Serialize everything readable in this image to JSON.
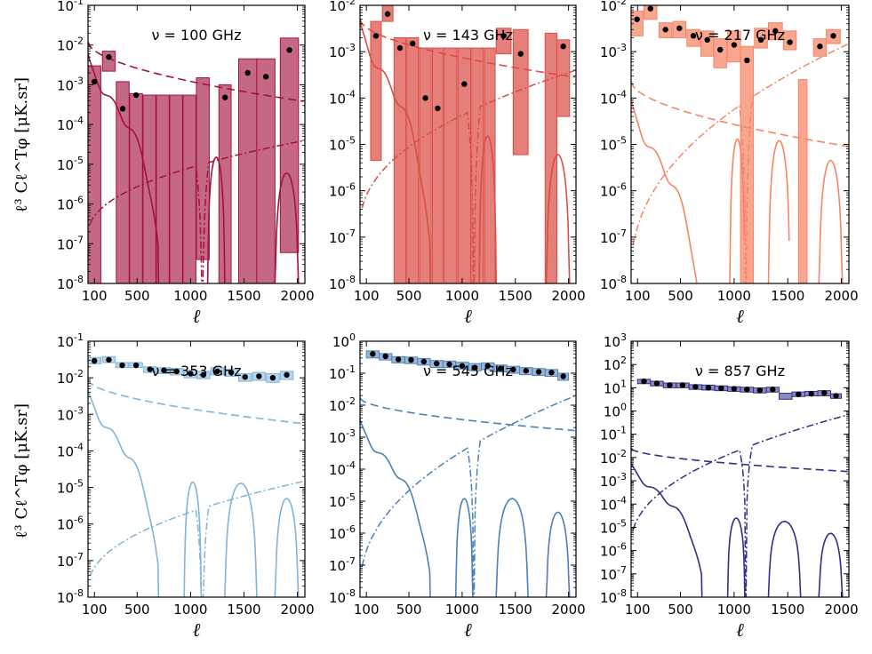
{
  "figure": {
    "xlabel": "ℓ",
    "ylabel": "ℓ³ Cℓ^Tφ  [μK.sr]"
  },
  "x_ticks": [
    "100",
    "500",
    "1000",
    "1500",
    "2000"
  ],
  "chart_data": [
    {
      "type": "bar",
      "title": "ν = 100 GHz",
      "color": "#a3123f",
      "xlim": [
        40,
        2070
      ],
      "ylim_exp": [
        -8,
        -1
      ],
      "y_ticks": [
        "10-8",
        "10-7",
        "10-6",
        "10-5",
        "10-4",
        "10-3",
        "10-2",
        "10-1"
      ],
      "bins": [
        {
          "lo": 40,
          "hi": 160,
          "low": 1e-08,
          "high": 0.003,
          "point": 0.0012
        },
        {
          "lo": 175,
          "hi": 295,
          "low": 0.0022,
          "high": 0.007,
          "point": 0.005
        },
        {
          "lo": 305,
          "hi": 425,
          "low": 1e-08,
          "high": 0.0012,
          "point": 0.00025
        },
        {
          "lo": 430,
          "hi": 550,
          "low": 1e-08,
          "high": 0.0006,
          "point": 0.00055
        },
        {
          "lo": 555,
          "hi": 675,
          "low": 1e-08,
          "high": 0.00055,
          "point": null
        },
        {
          "lo": 680,
          "hi": 800,
          "low": 1e-08,
          "high": 0.00055,
          "point": null
        },
        {
          "lo": 805,
          "hi": 925,
          "low": 1e-08,
          "high": 0.00055,
          "point": null
        },
        {
          "lo": 930,
          "hi": 1050,
          "low": 1e-08,
          "high": 0.00055,
          "point": null
        },
        {
          "lo": 1055,
          "hi": 1175,
          "low": 4e-08,
          "high": 0.0015,
          "point": null
        },
        {
          "lo": 1265,
          "hi": 1380,
          "low": 1e-08,
          "high": 0.001,
          "point": 0.00048
        },
        {
          "lo": 1450,
          "hi": 1620,
          "low": 1e-08,
          "high": 0.0045,
          "point": 0.002
        },
        {
          "lo": 1620,
          "hi": 1790,
          "low": 1e-08,
          "high": 0.0045,
          "point": 0.0016
        },
        {
          "lo": 1840,
          "hi": 2010,
          "low": 6e-08,
          "high": 0.015,
          "point": 0.0075
        }
      ],
      "dashed": {
        "a": 0.012,
        "b": 0.00038
      },
      "solid": {
        "peak": 0.005,
        "dropEnd": 700,
        "holes": [
          [
            1160,
            1320,
            1.5e-05
          ],
          [
            1790,
            2010,
            6e-06
          ]
        ]
      },
      "dashdot": {
        "lo": 1.6e-07,
        "hi": 4e-05,
        "cross": 1110
      }
    },
    {
      "type": "bar",
      "title": "ν = 143 GHz",
      "color": "#db4d45",
      "xlim": [
        40,
        2070
      ],
      "ylim_exp": [
        -8,
        -2
      ],
      "y_ticks": [
        "10-8",
        "10-7",
        "10-6",
        "10-5",
        "10-4",
        "10-3",
        "10-2"
      ],
      "bins": [
        {
          "lo": 140,
          "hi": 240,
          "low": 4.5e-06,
          "high": 0.0045,
          "point": 0.0022
        },
        {
          "lo": 250,
          "hi": 350,
          "low": 0.0045,
          "high": 0.01,
          "point": 0.0065
        },
        {
          "lo": 360,
          "hi": 470,
          "low": 1e-08,
          "high": 0.002,
          "point": 0.0012
        },
        {
          "lo": 480,
          "hi": 590,
          "low": 1e-08,
          "high": 0.002,
          "point": 0.0015
        },
        {
          "lo": 600,
          "hi": 710,
          "low": 1e-08,
          "high": 0.0012,
          "point": 0.0001
        },
        {
          "lo": 720,
          "hi": 820,
          "low": 1e-08,
          "high": 0.0012,
          "point": 6e-05
        },
        {
          "lo": 830,
          "hi": 950,
          "low": 1e-08,
          "high": 0.0012,
          "point": null
        },
        {
          "lo": 960,
          "hi": 1080,
          "low": 1e-08,
          "high": 0.0012,
          "point": 0.0002
        },
        {
          "lo": 1090,
          "hi": 1200,
          "low": 1e-08,
          "high": 0.0012,
          "point": null
        },
        {
          "lo": 1210,
          "hi": 1310,
          "low": 1e-08,
          "high": 0.0012,
          "point": null
        },
        {
          "lo": 1320,
          "hi": 1460,
          "low": 0.0009,
          "high": 0.0032,
          "point": 0.0022
        },
        {
          "lo": 1480,
          "hi": 1620,
          "low": 6e-06,
          "high": 0.003,
          "point": 0.0009
        },
        {
          "lo": 1780,
          "hi": 1890,
          "low": 1e-08,
          "high": 0.0025,
          "point": null
        },
        {
          "lo": 1890,
          "hi": 2010,
          "low": 4e-05,
          "high": 0.0018,
          "point": 0.0013
        }
      ],
      "dashed": {
        "a": 0.005,
        "b": 0.00028
      },
      "solid": {
        "peak": 0.004,
        "dropEnd": 700,
        "holes": [
          [
            1160,
            1320,
            1.5e-05
          ],
          [
            1790,
            2010,
            6e-06
          ]
        ]
      },
      "dashdot": {
        "lo": 1.6e-07,
        "hi": 0.0004,
        "cross": 1110
      }
    },
    {
      "type": "bar",
      "title": "ν = 217 GHz",
      "color": "#f58565",
      "xlim": [
        40,
        2070
      ],
      "ylim_exp": [
        -8,
        -2
      ],
      "y_ticks": [
        "10-8",
        "10-7",
        "10-6",
        "10-5",
        "10-4",
        "10-3",
        "10-2"
      ],
      "bins": [
        {
          "lo": 40,
          "hi": 150,
          "low": 0.0022,
          "high": 0.0075,
          "point": 0.005
        },
        {
          "lo": 160,
          "hi": 280,
          "low": 0.005,
          "high": 0.01,
          "point": 0.0085
        },
        {
          "lo": 300,
          "hi": 420,
          "low": 0.002,
          "high": 0.0042,
          "point": 0.003
        },
        {
          "lo": 430,
          "hi": 550,
          "low": 0.002,
          "high": 0.0045,
          "point": 0.0032
        },
        {
          "lo": 560,
          "hi": 680,
          "low": 0.0013,
          "high": 0.003,
          "point": 0.0022
        },
        {
          "lo": 690,
          "hi": 810,
          "low": 0.0008,
          "high": 0.0028,
          "point": 0.0018
        },
        {
          "lo": 810,
          "hi": 930,
          "low": 0.00045,
          "high": 0.0019,
          "point": 0.0011
        },
        {
          "lo": 940,
          "hi": 1060,
          "low": 0.0006,
          "high": 0.0028,
          "point": 0.0014
        },
        {
          "lo": 1060,
          "hi": 1180,
          "low": 1e-08,
          "high": 0.0013,
          "point": 0.00065
        },
        {
          "lo": 1190,
          "hi": 1310,
          "low": 0.0012,
          "high": 0.0032,
          "point": 0.0018
        },
        {
          "lo": 1320,
          "hi": 1450,
          "low": 0.0018,
          "high": 0.0042,
          "point": 0.0028
        },
        {
          "lo": 1460,
          "hi": 1580,
          "low": 0.0011,
          "high": 0.0028,
          "point": 0.0016
        },
        {
          "lo": 1600,
          "hi": 1680,
          "low": 1e-08,
          "high": 0.00025,
          "point": null
        },
        {
          "lo": 1740,
          "hi": 1860,
          "low": 0.0008,
          "high": 0.0019,
          "point": 0.0013
        },
        {
          "lo": 1860,
          "hi": 1990,
          "low": 0.0015,
          "high": 0.003,
          "point": 0.0022
        }
      ],
      "dashed": {
        "a": 0.00023,
        "b": 9e-06
      },
      "solid": {
        "peak": 8e-05,
        "dropEnd": 700,
        "holes": [
          [
            960,
            1100,
            1.3e-05
          ],
          [
            1320,
            1520,
            1.2e-05
          ],
          [
            1790,
            2010,
            4.5e-06
          ]
        ]
      },
      "dashdot": {
        "lo": 1.6e-08,
        "hi": 0.0015,
        "cross": 1110
      }
    },
    {
      "type": "bar",
      "title": "ν = 353 GHz",
      "color": "#7fb4db",
      "xlim": [
        40,
        2070
      ],
      "ylim_exp": [
        -8,
        -1
      ],
      "y_ticks": [
        "10-8",
        "10-7",
        "10-6",
        "10-5",
        "10-4",
        "10-3",
        "10-2",
        "10-1"
      ],
      "bins": [
        {
          "lo": 40,
          "hi": 160,
          "low": 0.024,
          "high": 0.036,
          "point": 0.029
        },
        {
          "lo": 175,
          "hi": 295,
          "low": 0.026,
          "high": 0.038,
          "point": 0.031
        },
        {
          "lo": 300,
          "hi": 420,
          "low": 0.019,
          "high": 0.026,
          "point": 0.022
        },
        {
          "lo": 430,
          "hi": 550,
          "low": 0.019,
          "high": 0.026,
          "point": 0.022
        },
        {
          "lo": 560,
          "hi": 680,
          "low": 0.014,
          "high": 0.02,
          "point": 0.017
        },
        {
          "lo": 690,
          "hi": 810,
          "low": 0.013,
          "high": 0.019,
          "point": 0.016
        },
        {
          "lo": 810,
          "hi": 930,
          "low": 0.012,
          "high": 0.018,
          "point": 0.015
        },
        {
          "lo": 940,
          "hi": 1060,
          "low": 0.01,
          "high": 0.016,
          "point": 0.013
        },
        {
          "lo": 1060,
          "hi": 1180,
          "low": 0.0095,
          "high": 0.015,
          "point": 0.012
        },
        {
          "lo": 1190,
          "hi": 1310,
          "low": 0.012,
          "high": 0.019,
          "point": 0.015
        },
        {
          "lo": 1320,
          "hi": 1440,
          "low": 0.011,
          "high": 0.017,
          "point": 0.014
        },
        {
          "lo": 1450,
          "hi": 1570,
          "low": 0.008,
          "high": 0.013,
          "point": 0.0105
        },
        {
          "lo": 1580,
          "hi": 1700,
          "low": 0.0085,
          "high": 0.014,
          "point": 0.011
        },
        {
          "lo": 1710,
          "hi": 1830,
          "low": 0.0075,
          "high": 0.013,
          "point": 0.01
        },
        {
          "lo": 1840,
          "hi": 1960,
          "low": 0.009,
          "high": 0.015,
          "point": 0.012
        }
      ],
      "dashed": {
        "a": 0.009,
        "b": 0.00055
      },
      "solid": {
        "peak": 0.004,
        "dropEnd": 700,
        "holes": [
          [
            940,
            1100,
            1.4e-05
          ],
          [
            1320,
            1620,
            1.3e-05
          ],
          [
            1790,
            2010,
            5e-06
          ]
        ]
      },
      "dashdot": {
        "lo": 1.6e-08,
        "hi": 1.5e-05,
        "cross": 1110
      }
    },
    {
      "type": "bar",
      "title": "ν = 545 GHz",
      "color": "#4a80b9",
      "xlim": [
        40,
        2070
      ],
      "ylim_exp": [
        -8,
        0
      ],
      "y_ticks": [
        "10-8",
        "10-7",
        "10-6",
        "10-5",
        "10-4",
        "10-3",
        "10-2",
        "10-1",
        "100"
      ],
      "bins": [
        {
          "lo": 100,
          "hi": 220,
          "low": 0.3,
          "high": 0.5,
          "point": 0.4
        },
        {
          "lo": 220,
          "hi": 340,
          "low": 0.26,
          "high": 0.41,
          "point": 0.34
        },
        {
          "lo": 340,
          "hi": 460,
          "low": 0.21,
          "high": 0.33,
          "point": 0.27
        },
        {
          "lo": 460,
          "hi": 580,
          "low": 0.2,
          "high": 0.32,
          "point": 0.26
        },
        {
          "lo": 580,
          "hi": 700,
          "low": 0.18,
          "high": 0.29,
          "point": 0.23
        },
        {
          "lo": 700,
          "hi": 820,
          "low": 0.15,
          "high": 0.25,
          "point": 0.2
        },
        {
          "lo": 820,
          "hi": 940,
          "low": 0.15,
          "high": 0.24,
          "point": 0.19
        },
        {
          "lo": 940,
          "hi": 1060,
          "low": 0.135,
          "high": 0.22,
          "point": 0.17
        },
        {
          "lo": 1060,
          "hi": 1180,
          "low": 0.12,
          "high": 0.2,
          "point": 0.15
        },
        {
          "lo": 1180,
          "hi": 1300,
          "low": 0.13,
          "high": 0.21,
          "point": 0.17
        },
        {
          "lo": 1300,
          "hi": 1420,
          "low": 0.11,
          "high": 0.18,
          "point": 0.14
        },
        {
          "lo": 1420,
          "hi": 1540,
          "low": 0.1,
          "high": 0.165,
          "point": 0.13
        },
        {
          "lo": 1540,
          "hi": 1660,
          "low": 0.09,
          "high": 0.15,
          "point": 0.12
        },
        {
          "lo": 1660,
          "hi": 1780,
          "low": 0.085,
          "high": 0.14,
          "point": 0.11
        },
        {
          "lo": 1780,
          "hi": 1900,
          "low": 0.08,
          "high": 0.13,
          "point": 0.105
        },
        {
          "lo": 1900,
          "hi": 2000,
          "low": 0.06,
          "high": 0.1,
          "point": 0.08
        }
      ],
      "dashed": {
        "a": 0.017,
        "b": 0.0016
      },
      "solid": {
        "peak": 0.003,
        "dropEnd": 700,
        "holes": [
          [
            940,
            1100,
            1.2e-05
          ],
          [
            1320,
            1620,
            1.2e-05
          ],
          [
            1790,
            2010,
            4.5e-06
          ]
        ]
      },
      "dashdot": {
        "lo": 1.6e-08,
        "hi": 0.02,
        "cross": 1110
      }
    },
    {
      "type": "bar",
      "title": "ν = 857 GHz",
      "color": "#2f2e89",
      "xlim": [
        40,
        2070
      ],
      "ylim_exp": [
        -8,
        3
      ],
      "y_ticks": [
        "10-8",
        "10-7",
        "10-6",
        "10-5",
        "10-4",
        "10-3",
        "10-2",
        "10-1",
        "100",
        "101",
        "102",
        "103"
      ],
      "bins": [
        {
          "lo": 100,
          "hi": 220,
          "low": 15.0,
          "high": 23.0,
          "point": 19.0
        },
        {
          "lo": 220,
          "hi": 340,
          "low": 12.0,
          "high": 19.0,
          "point": 15.5
        },
        {
          "lo": 340,
          "hi": 460,
          "low": 10.0,
          "high": 16.0,
          "point": 13.0
        },
        {
          "lo": 460,
          "hi": 580,
          "low": 10.0,
          "high": 16.0,
          "point": 13.0
        },
        {
          "lo": 580,
          "hi": 700,
          "low": 8.5,
          "high": 13.5,
          "point": 11.0
        },
        {
          "lo": 700,
          "hi": 820,
          "low": 8.0,
          "high": 13.0,
          "point": 10.0
        },
        {
          "lo": 820,
          "hi": 940,
          "low": 7.5,
          "high": 12.0,
          "point": 9.5
        },
        {
          "lo": 940,
          "hi": 1060,
          "low": 7.0,
          "high": 11.0,
          "point": 9.0
        },
        {
          "lo": 1060,
          "hi": 1180,
          "low": 6.5,
          "high": 10.5,
          "point": 8.5
        },
        {
          "lo": 1180,
          "hi": 1300,
          "low": 6.0,
          "high": 9.8,
          "point": 7.8
        },
        {
          "lo": 1300,
          "hi": 1420,
          "low": 6.5,
          "high": 10.5,
          "point": 8.5
        },
        {
          "lo": 1420,
          "hi": 1540,
          "low": 3.2,
          "high": 5.8,
          "point": null
        },
        {
          "lo": 1540,
          "hi": 1660,
          "low": 4.2,
          "high": 6.6,
          "point": 5.2
        },
        {
          "lo": 1660,
          "hi": 1780,
          "low": 4.5,
          "high": 7.0,
          "point": 5.5
        },
        {
          "lo": 1780,
          "hi": 1900,
          "low": 4.5,
          "high": 7.5,
          "point": 6.0
        },
        {
          "lo": 1900,
          "hi": 2000,
          "low": 3.5,
          "high": 5.5,
          "point": 4.5
        }
      ],
      "dashed": {
        "a": 0.025,
        "b": 0.0025
      },
      "solid": {
        "peak": 0.005,
        "dropEnd": 700,
        "holes": [
          [
            940,
            1100,
            2.5e-05
          ],
          [
            1320,
            1620,
            1.8e-05
          ],
          [
            1790,
            2010,
            5.5e-06
          ]
        ]
      },
      "dashdot": {
        "lo": 1.6e-06,
        "hi": 0.7,
        "cross": 1110
      }
    }
  ]
}
